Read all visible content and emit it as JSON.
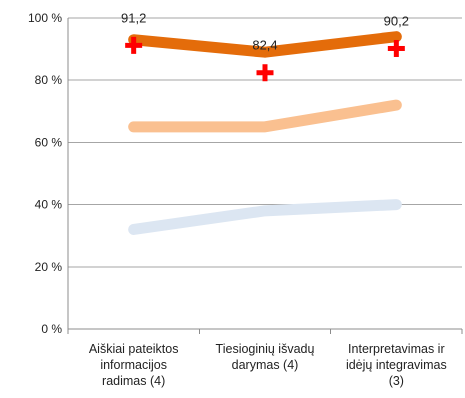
{
  "chart_data": {
    "type": "line",
    "categories": [
      [
        "Aiškiai pateiktos",
        "informacijos",
        "radimas (4)"
      ],
      [
        "Tiesioginių išvadų",
        "darymas (4)"
      ],
      [
        "Interpretavimas ir",
        "idėjų integravimas",
        "(3)"
      ]
    ],
    "ylim": [
      0,
      100
    ],
    "yticks": [
      "0 %",
      "20 %",
      "40 %",
      "60 %",
      "80 %",
      "100 %"
    ],
    "ytick_values": [
      0,
      20,
      40,
      60,
      80,
      100
    ],
    "grid": true,
    "legend": "none",
    "series": [
      {
        "values": [
          93,
          89,
          94
        ],
        "color": "#E46C0A",
        "style": "thick-line"
      },
      {
        "values": [
          65,
          65,
          72
        ],
        "color": "#FAC090",
        "style": "thick-line"
      },
      {
        "values": [
          32,
          38,
          40
        ],
        "color": "#DCE6F2",
        "style": "thick-line"
      },
      {
        "values": [
          91.2,
          82.4,
          90.2
        ],
        "color": "#FF0000",
        "style": "cross-marker",
        "labels": [
          "91,2",
          "82,4",
          "90,2"
        ]
      }
    ]
  }
}
